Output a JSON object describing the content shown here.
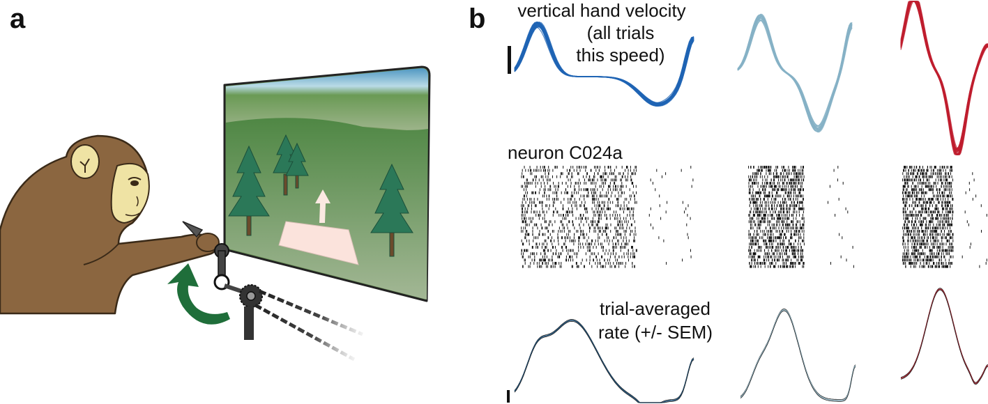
{
  "panels": {
    "a": {
      "letter": "a"
    },
    "b": {
      "letter": "b"
    }
  },
  "annotations": {
    "velocity_title_line1": "vertical hand velocity",
    "velocity_title_line2": "(all trials",
    "velocity_title_line3": "this speed)",
    "neuron_label": "neuron C024a",
    "rate_label_line1": "trial-averaged",
    "rate_label_line2": "rate (+/- SEM)"
  },
  "colors": {
    "fast_speed": "#1f64b4",
    "medium_speed": "#86b2c6",
    "slow_speed": "#bf1e2e",
    "rate_fast": "#1c4f78",
    "rate_medium": "#8fb3c2",
    "rate_slow": "#9b1f2a",
    "monkey_fur": "#8b6640",
    "monkey_face": "#efe3a4",
    "screen_sky_top": "#7fb8d6",
    "screen_grass": "#5f8e52",
    "tree": "#2e7a5c",
    "arrow_green": "#1f6e3a",
    "target_pad": "#fbe3dc"
  },
  "icons": {
    "monkey": "monkey-illustration",
    "screen": "virtual-environment-screen-icon",
    "hand_pedal": "hand-pedal-icon",
    "rotation_arrow": "curved-rotation-arrow-icon",
    "scale_bar": "scale-bar-icon"
  }
}
